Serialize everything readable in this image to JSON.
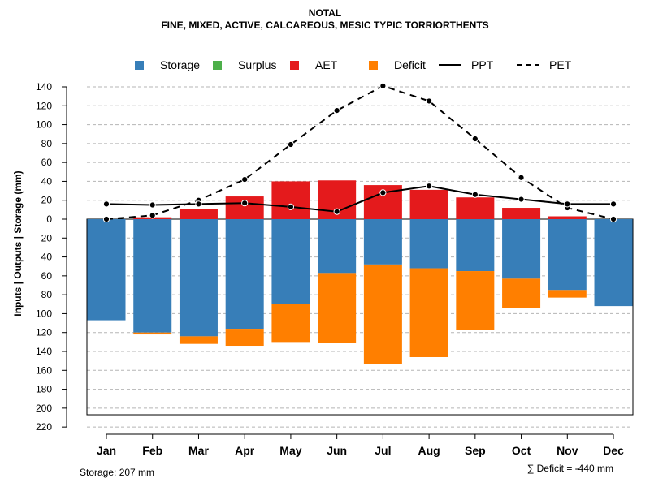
{
  "chart_data": {
    "type": "bar",
    "title": "NOTAL",
    "subtitle": "FINE, MIXED, ACTIVE, CALCAREOUS, MESIC TYPIC TORRIORTHENTS",
    "ylabel": "Inputs | Outputs | Storage    (mm)",
    "categories": [
      "Jan",
      "Feb",
      "Mar",
      "Apr",
      "May",
      "Jun",
      "Jul",
      "Aug",
      "Sep",
      "Oct",
      "Nov",
      "Dec"
    ],
    "ylim": [
      -220,
      150
    ],
    "yticks": [
      140,
      120,
      100,
      80,
      60,
      40,
      20,
      0,
      -20,
      -40,
      -60,
      -80,
      -100,
      -120,
      -140,
      -160,
      -180,
      -200,
      -220
    ],
    "ytick_labels": [
      "140",
      "120",
      "100",
      "80",
      "60",
      "40",
      "20",
      "0",
      "20",
      "40",
      "60",
      "80",
      "100",
      "120",
      "140",
      "160",
      "180",
      "200",
      "220"
    ],
    "storage_capacity": 207,
    "series": [
      {
        "name": "Storage",
        "color": "#377EB8",
        "values": [
          107,
          120,
          124,
          116,
          90,
          57,
          48,
          52,
          55,
          63,
          75,
          92
        ]
      },
      {
        "name": "Surplus",
        "color": "#4DAF4A",
        "values": [
          0,
          0,
          0,
          0,
          0,
          0,
          0,
          0,
          0,
          0,
          0,
          0
        ]
      },
      {
        "name": "AET",
        "color": "#E41A1C",
        "values": [
          0,
          2,
          11,
          24,
          40,
          41,
          36,
          31,
          23,
          12,
          3,
          0
        ]
      },
      {
        "name": "Deficit",
        "color": "#FF7F00",
        "values": [
          0,
          2,
          8,
          18,
          40,
          74,
          105,
          94,
          62,
          31,
          8,
          0
        ]
      },
      {
        "name": "PPT",
        "color": "#000000",
        "style": "solid",
        "values": [
          16,
          15,
          16,
          17,
          13,
          8,
          28,
          35,
          26,
          21,
          16,
          16
        ]
      },
      {
        "name": "PET",
        "color": "#000000",
        "style": "dashed",
        "values": [
          0,
          4,
          20,
          42,
          79,
          115,
          141,
          125,
          85,
          44,
          12,
          0
        ]
      }
    ]
  },
  "footer": {
    "storage": "Storage: 207 mm",
    "deficit": "∑ Deficit = -440 mm"
  }
}
